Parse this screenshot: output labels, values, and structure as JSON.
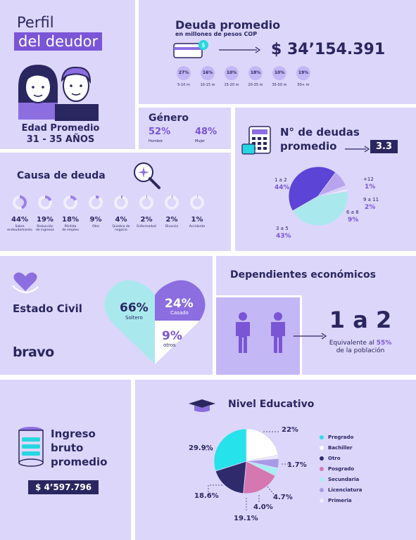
{
  "perfil": {
    "title_line1": "Perfil",
    "title_line2": "del deudor",
    "edad_label": "Edad Promedio",
    "edad_value": "31 - 35 AÑOS"
  },
  "deuda": {
    "title": "Deuda promedio",
    "subtitle": "en millones de pesos COP",
    "amount": "$ 34’154.391",
    "bubbles": [
      {
        "pct": "27%",
        "range": "5-10 m"
      },
      {
        "pct": "16%",
        "range": "10-15 m"
      },
      {
        "pct": "10%",
        "range": "15-20 m"
      },
      {
        "pct": "18%",
        "range": "20-35 m"
      },
      {
        "pct": "10%",
        "range": "35-50 m"
      },
      {
        "pct": "19%",
        "range": "50+ m"
      }
    ]
  },
  "genero": {
    "title": "Género",
    "hombre_pct": "52%",
    "hombre_label": "Hombre",
    "mujer_pct": "48%",
    "mujer_label": "Mujer"
  },
  "num_deudas": {
    "title_line1": "N° de deudas",
    "title_line2": "promedio",
    "value": "3.3",
    "slices": [
      {
        "label": "1 a 2",
        "pct": "44%",
        "value": 44,
        "color": "#a9e9ee"
      },
      {
        "label": "3 a 5",
        "pct": "43%",
        "value": 43,
        "color": "#5b44d6"
      },
      {
        "label": "6 a 8",
        "pct": "9%",
        "value": 9,
        "color": "#b8a4ee"
      },
      {
        "label": "9 a 11",
        "pct": "2%",
        "value": 2,
        "color": "#d9ccfa"
      },
      {
        "label": "+12",
        "pct": "1%",
        "value": 1,
        "color": "#f2effd"
      }
    ]
  },
  "causa": {
    "title": "Causa de deuda",
    "items": [
      {
        "pct": "44%",
        "value": 44,
        "label1": "Sobre",
        "label2": "endeudamiento"
      },
      {
        "pct": "19%",
        "value": 19,
        "label1": "Reducción",
        "label2": "de ingresos"
      },
      {
        "pct": "18%",
        "value": 18,
        "label1": "Pérdida",
        "label2": "de empleo"
      },
      {
        "pct": "9%",
        "value": 9,
        "label1": "Otro",
        "label2": ""
      },
      {
        "pct": "4%",
        "value": 4,
        "label1": "Quiebra de",
        "label2": "negocio"
      },
      {
        "pct": "2%",
        "value": 2,
        "label1": "Enfermedad",
        "label2": ""
      },
      {
        "pct": "2%",
        "value": 2,
        "label1": "Divorcio",
        "label2": ""
      },
      {
        "pct": "1%",
        "value": 1,
        "label1": "Accidente",
        "label2": ""
      }
    ]
  },
  "estado_civil": {
    "title": "Estado Civil",
    "soltero_pct": "66%",
    "soltero_label": "Soltero",
    "casado_pct": "24%",
    "casado_label": "Casado",
    "otros_pct": "9%",
    "otros_label": "otros",
    "brand": "bravo"
  },
  "dependientes": {
    "title": "Dependientes económicos",
    "value": "1 a 2",
    "note_pre": "Equivalente al ",
    "note_pct": "55%",
    "note_post": "de la población"
  },
  "ingreso": {
    "line1": "Ingreso",
    "line2": "bruto",
    "line3": "promedio",
    "amount": "$ 4’597.796"
  },
  "educativo": {
    "title": "Nivel Educativo",
    "slices": [
      {
        "name": "Pregrado",
        "pct": "29.9%",
        "value": 29.9,
        "color": "#26e2ea"
      },
      {
        "name": "Bachiller",
        "pct": "22%",
        "value": 22,
        "color": "#ffffff"
      },
      {
        "name": "Otro",
        "pct": "18.6%",
        "value": 18.6,
        "color": "#2e2a6b"
      },
      {
        "name": "Posgrado",
        "pct": "19.1%",
        "value": 19.1,
        "color": "#d577b0"
      },
      {
        "name": "Secundaria",
        "pct": "4.0%",
        "value": 4.0,
        "color": "#a6eef2"
      },
      {
        "name": "Licenciatura",
        "pct": "4.7%",
        "value": 4.7,
        "color": "#a89ae6"
      },
      {
        "name": "Primeria",
        "pct": "1.7%",
        "value": 1.7,
        "color": "#eeeafd"
      }
    ]
  }
}
